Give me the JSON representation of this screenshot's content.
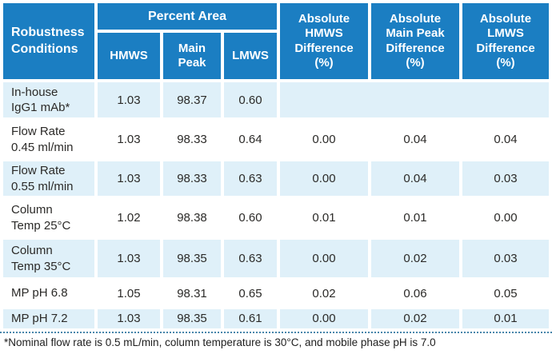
{
  "colors": {
    "header_blue": "#1b7ec2",
    "row_light_blue": "#dff0f9",
    "row_white": "#ffffff",
    "text_dark": "#2b2a28",
    "dotted_line": "#4886ab"
  },
  "table": {
    "corner_header": "Robustness\nConditions",
    "group_header": "Percent Area",
    "sub_headers": [
      "HMWS",
      "Main Peak",
      "LMWS"
    ],
    "diff_headers": [
      "Absolute\nHMWS\nDifference\n(%)",
      "Absolute\nMain Peak\nDifference\n(%)",
      "Absolute\nLMWS\nDifference\n(%)"
    ],
    "rows": [
      {
        "label": "In-house\nIgG1 mAb*",
        "hmws": "1.03",
        "main_peak": "98.37",
        "lmws": "0.60",
        "hmws_diff": "",
        "main_peak_diff": "",
        "lmws_diff": ""
      },
      {
        "label": "Flow Rate\n0.45 ml/min",
        "hmws": "1.03",
        "main_peak": "98.33",
        "lmws": "0.64",
        "hmws_diff": "0.00",
        "main_peak_diff": "0.04",
        "lmws_diff": "0.04"
      },
      {
        "label": "Flow Rate\n0.55 ml/min",
        "hmws": "1.03",
        "main_peak": "98.33",
        "lmws": "0.63",
        "hmws_diff": "0.00",
        "main_peak_diff": "0.04",
        "lmws_diff": "0.03"
      },
      {
        "label": "Column\nTemp 25°C",
        "hmws": "1.02",
        "main_peak": "98.38",
        "lmws": "0.60",
        "hmws_diff": "0.01",
        "main_peak_diff": "0.01",
        "lmws_diff": "0.00"
      },
      {
        "label": "Column\nTemp 35°C",
        "hmws": "1.03",
        "main_peak": "98.35",
        "lmws": "0.63",
        "hmws_diff": "0.00",
        "main_peak_diff": "0.02",
        "lmws_diff": "0.03"
      },
      {
        "label": "MP pH 6.8",
        "hmws": "1.05",
        "main_peak": "98.31",
        "lmws": "0.65",
        "hmws_diff": "0.02",
        "main_peak_diff": "0.06",
        "lmws_diff": "0.05"
      },
      {
        "label": "MP pH 7.2",
        "hmws": "1.03",
        "main_peak": "98.35",
        "lmws": "0.61",
        "hmws_diff": "0.00",
        "main_peak_diff": "0.02",
        "lmws_diff": "0.01"
      }
    ],
    "footnote": "*Nominal flow rate is 0.5 mL/min, column temperature is 30°C, and mobile phase pH is 7.0"
  },
  "chart_data": {
    "type": "table",
    "title": "SEC robustness results",
    "columns": [
      "Robustness Conditions",
      "Percent Area HMWS",
      "Percent Area Main Peak",
      "Percent Area LMWS",
      "Absolute HMWS Difference (%)",
      "Absolute Main Peak Difference (%)",
      "Absolute LMWS Difference (%)"
    ],
    "rows": [
      [
        "In-house IgG1 mAb*",
        1.03,
        98.37,
        0.6,
        null,
        null,
        null
      ],
      [
        "Flow Rate 0.45 ml/min",
        1.03,
        98.33,
        0.64,
        0.0,
        0.04,
        0.04
      ],
      [
        "Flow Rate 0.55 ml/min",
        1.03,
        98.33,
        0.63,
        0.0,
        0.04,
        0.03
      ],
      [
        "Column Temp 25°C",
        1.02,
        98.38,
        0.6,
        0.01,
        0.01,
        0.0
      ],
      [
        "Column Temp 35°C",
        1.03,
        98.35,
        0.63,
        0.0,
        0.02,
        0.03
      ],
      [
        "MP pH 6.8",
        1.05,
        98.31,
        0.65,
        0.02,
        0.06,
        0.05
      ],
      [
        "MP pH 7.2",
        1.03,
        98.35,
        0.61,
        0.0,
        0.02,
        0.01
      ]
    ],
    "footnote": "*Nominal flow rate is 0.5 mL/min, column temperature is 30°C, and mobile phase pH is 7.0"
  }
}
